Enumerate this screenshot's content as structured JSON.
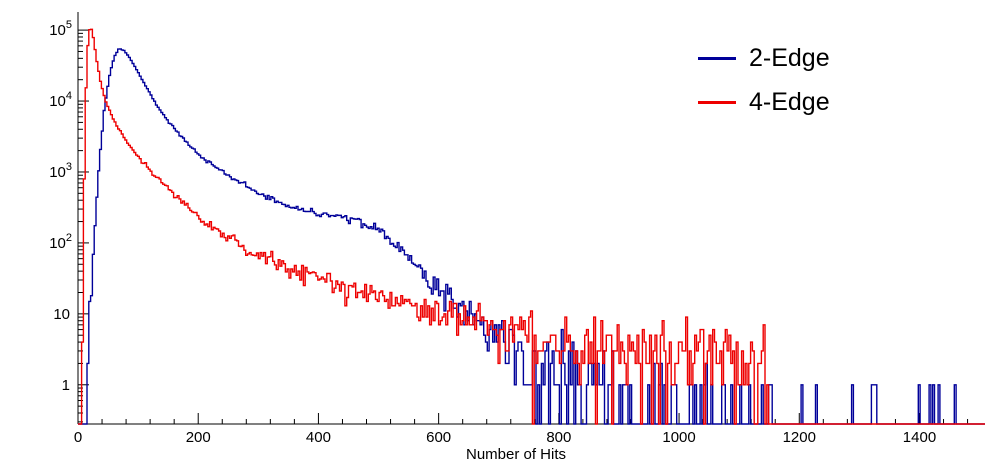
{
  "chart_data": {
    "type": "histogram-step",
    "title": "",
    "xlabel": "Number of Hits",
    "ylabel": "",
    "y_scale": "log",
    "x_range": [
      0,
      1509
    ],
    "y_range": [
      0.28,
      180000
    ],
    "bin_width": 3,
    "grid": false,
    "x_axis": {
      "major_ticks": [
        0,
        200,
        400,
        600,
        800,
        1000,
        1200,
        1400
      ],
      "minor_tick_step": 40
    },
    "y_axis": {
      "major_ticks": [
        {
          "value": 1,
          "base": "1",
          "exp": ""
        },
        {
          "value": 10,
          "base": "10",
          "exp": ""
        },
        {
          "value": 100,
          "base": "10",
          "exp": "2"
        },
        {
          "value": 1000,
          "base": "10",
          "exp": "3"
        },
        {
          "value": 10000,
          "base": "10",
          "exp": "4"
        },
        {
          "value": 100000,
          "base": "10",
          "exp": "5"
        }
      ]
    },
    "legend": {
      "position": "top-right",
      "items": [
        {
          "label": "2-Edge",
          "color": "#000099"
        },
        {
          "label": "4-Edge",
          "color": "#ee0000"
        }
      ]
    },
    "series": [
      {
        "name": "2-Edge",
        "color": "#000099",
        "seed": 20240517,
        "anchors": [
          [
            0,
            0.001
          ],
          [
            8,
            0.02
          ],
          [
            14,
            0.6
          ],
          [
            20,
            8
          ],
          [
            28,
            150
          ],
          [
            36,
            1500
          ],
          [
            44,
            8000
          ],
          [
            52,
            22000
          ],
          [
            60,
            42000
          ],
          [
            68,
            55000
          ],
          [
            76,
            52000
          ],
          [
            85,
            42000
          ],
          [
            95,
            30000
          ],
          [
            110,
            18000
          ],
          [
            130,
            9000
          ],
          [
            150,
            5200
          ],
          [
            175,
            3000
          ],
          [
            200,
            1800
          ],
          [
            230,
            1150
          ],
          [
            260,
            780
          ],
          [
            300,
            520
          ],
          [
            340,
            350
          ],
          [
            380,
            280
          ],
          [
            420,
            245
          ],
          [
            455,
            215
          ],
          [
            485,
            180
          ],
          [
            510,
            130
          ],
          [
            535,
            85
          ],
          [
            560,
            50
          ],
          [
            585,
            30
          ],
          [
            610,
            19
          ],
          [
            640,
            11
          ],
          [
            670,
            7
          ],
          [
            700,
            4.5
          ],
          [
            730,
            3
          ],
          [
            760,
            2.2
          ],
          [
            800,
            1.6
          ],
          [
            850,
            1.1
          ],
          [
            900,
            0.8
          ],
          [
            950,
            0.55
          ],
          [
            1000,
            0.35
          ],
          [
            1100,
            0.18
          ],
          [
            1250,
            0.12
          ],
          [
            1500,
            0.1
          ]
        ]
      },
      {
        "name": "4-Edge",
        "color": "#ee0000",
        "seed": 99,
        "anchors": [
          [
            0,
            0.001
          ],
          [
            4,
            0.05
          ],
          [
            7,
            5
          ],
          [
            10,
            500
          ],
          [
            13,
            12000
          ],
          [
            16,
            55000
          ],
          [
            19,
            100000
          ],
          [
            22,
            108000
          ],
          [
            26,
            75000
          ],
          [
            31,
            38000
          ],
          [
            38,
            18000
          ],
          [
            46,
            10000
          ],
          [
            56,
            6200
          ],
          [
            68,
            4000
          ],
          [
            82,
            2600
          ],
          [
            100,
            1650
          ],
          [
            120,
            1050
          ],
          [
            145,
            640
          ],
          [
            170,
            420
          ],
          [
            200,
            230
          ],
          [
            235,
            140
          ],
          [
            270,
            95
          ],
          [
            310,
            62
          ],
          [
            350,
            45
          ],
          [
            395,
            33
          ],
          [
            440,
            25
          ],
          [
            490,
            18
          ],
          [
            540,
            14
          ],
          [
            590,
            11
          ],
          [
            640,
            8.5
          ],
          [
            690,
            7
          ],
          [
            740,
            5.8
          ],
          [
            790,
            4.8
          ],
          [
            840,
            4.2
          ],
          [
            890,
            3.6
          ],
          [
            940,
            3.2
          ],
          [
            990,
            3
          ],
          [
            1040,
            2.8
          ],
          [
            1090,
            2.5
          ],
          [
            1125,
            2.2
          ],
          [
            1145,
            1.5
          ],
          [
            1152,
            0.02
          ],
          [
            1500,
            0.001
          ]
        ]
      }
    ]
  }
}
